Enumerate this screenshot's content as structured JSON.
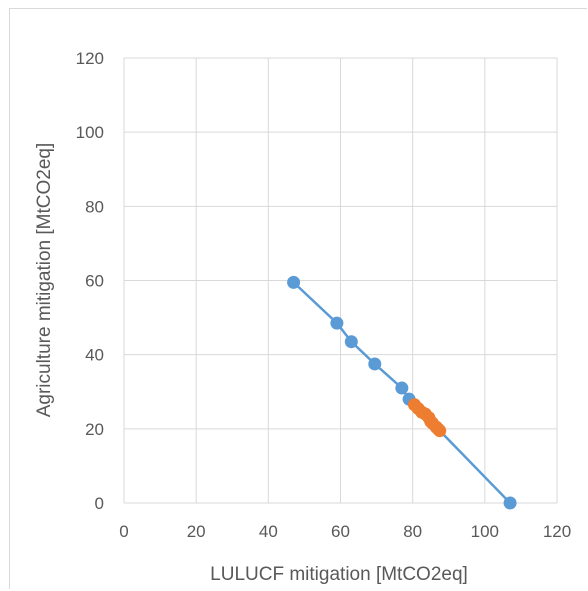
{
  "chart_data": {
    "type": "scatter",
    "title": "",
    "xlabel": "LULUCF mitigation [MtCO2eq]",
    "ylabel": "Agriculture mitigation [MtCO2eq]",
    "xlim": [
      0,
      120
    ],
    "ylim": [
      0,
      120
    ],
    "xticks": [
      "0",
      "20",
      "40",
      "60",
      "80",
      "100",
      "120"
    ],
    "yticks": [
      "0",
      "20",
      "40",
      "60",
      "80",
      "100",
      "120"
    ],
    "grid": true,
    "legend": "none",
    "series": [
      {
        "color": "#5b9bd5",
        "marker": "circle",
        "line": true,
        "points": [
          {
            "x": 47,
            "y": 59.5
          },
          {
            "x": 59,
            "y": 48.5
          },
          {
            "x": 63,
            "y": 43.5
          },
          {
            "x": 69.5,
            "y": 37.5
          },
          {
            "x": 77,
            "y": 31
          },
          {
            "x": 79,
            "y": 28
          },
          {
            "x": 107,
            "y": 0
          }
        ]
      },
      {
        "color": "#ed7d31",
        "marker": "circle",
        "line": false,
        "points": [
          {
            "x": 80.5,
            "y": 26.5
          },
          {
            "x": 81.5,
            "y": 25.5
          },
          {
            "x": 82.5,
            "y": 24.5
          },
          {
            "x": 83.5,
            "y": 24
          },
          {
            "x": 84.5,
            "y": 23
          },
          {
            "x": 85,
            "y": 22
          },
          {
            "x": 85.5,
            "y": 21.5
          },
          {
            "x": 86.5,
            "y": 20.5
          },
          {
            "x": 87,
            "y": 20
          },
          {
            "x": 87.5,
            "y": 19.5
          }
        ]
      }
    ]
  }
}
